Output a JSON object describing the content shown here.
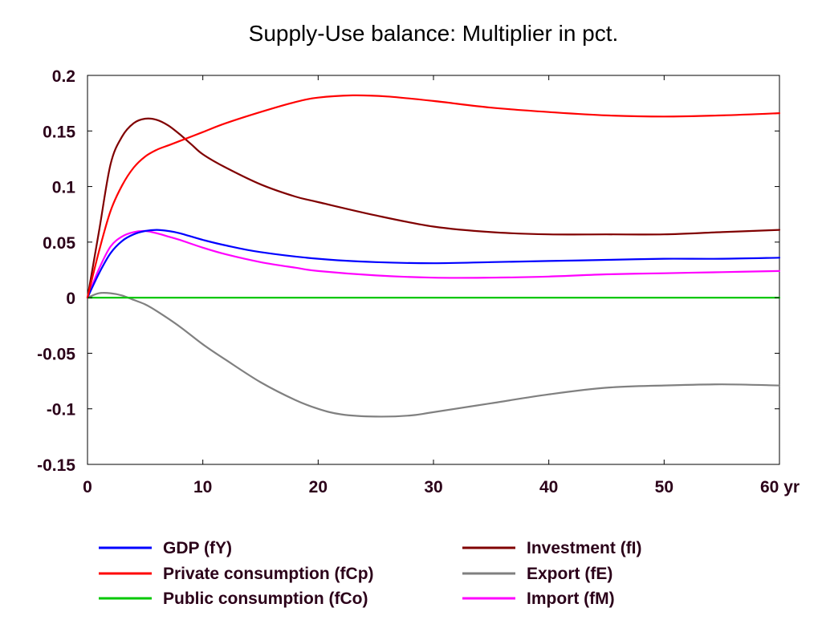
{
  "chart_data": {
    "type": "line",
    "title": "Supply-Use balance: Multiplier in pct.",
    "xlabel": "",
    "ylabel": "",
    "x_unit_label": "yr",
    "xlim": [
      0,
      60
    ],
    "ylim": [
      -0.15,
      0.2
    ],
    "x_ticks": [
      0,
      10,
      20,
      30,
      40,
      50,
      60
    ],
    "x_tick_labels": [
      "0",
      "10",
      "20",
      "30",
      "40",
      "50",
      "60"
    ],
    "y_ticks": [
      0.2,
      0.15,
      0.1,
      0.05,
      0,
      -0.05,
      -0.1,
      -0.15
    ],
    "y_tick_labels": [
      "0.2",
      "0.15",
      "0.1",
      "0.05",
      "0",
      "-0.05",
      "-0.1",
      "-0.15"
    ],
    "grid": false,
    "legend_position": "bottom",
    "series": [
      {
        "name": "GDP (fY)",
        "color": "#0000ff",
        "x": [
          0,
          1,
          2,
          3,
          4,
          5,
          6,
          7,
          8,
          10,
          12,
          15,
          20,
          25,
          30,
          35,
          40,
          45,
          50,
          55,
          60
        ],
        "values": [
          0,
          0.022,
          0.04,
          0.051,
          0.057,
          0.06,
          0.061,
          0.06,
          0.058,
          0.052,
          0.047,
          0.041,
          0.035,
          0.032,
          0.031,
          0.032,
          0.033,
          0.034,
          0.035,
          0.035,
          0.036
        ]
      },
      {
        "name": "Private consumption (fCp)",
        "color": "#ff0000",
        "x": [
          0,
          1,
          2,
          3,
          4,
          5,
          6,
          7,
          8,
          10,
          12,
          15,
          18,
          20,
          23,
          26,
          30,
          35,
          40,
          45,
          50,
          55,
          60
        ],
        "values": [
          0,
          0.042,
          0.078,
          0.101,
          0.117,
          0.127,
          0.133,
          0.137,
          0.141,
          0.149,
          0.157,
          0.167,
          0.176,
          0.18,
          0.182,
          0.181,
          0.177,
          0.171,
          0.167,
          0.164,
          0.163,
          0.164,
          0.166
        ]
      },
      {
        "name": "Public consumption (fCo)",
        "color": "#00c800",
        "x": [
          0,
          60
        ],
        "values": [
          0,
          0
        ]
      },
      {
        "name": "Investment (fI)",
        "color": "#800000",
        "x": [
          0,
          1,
          2,
          3,
          4,
          5,
          6,
          7,
          8,
          9,
          10,
          12,
          15,
          18,
          20,
          25,
          30,
          35,
          40,
          45,
          50,
          55,
          60
        ],
        "values": [
          0,
          0.06,
          0.12,
          0.145,
          0.157,
          0.161,
          0.16,
          0.155,
          0.147,
          0.138,
          0.129,
          0.117,
          0.102,
          0.091,
          0.086,
          0.074,
          0.064,
          0.059,
          0.057,
          0.057,
          0.057,
          0.059,
          0.061
        ]
      },
      {
        "name": "Export (fE)",
        "color": "#808080",
        "x": [
          0,
          1,
          2,
          3,
          4,
          5,
          6,
          8,
          10,
          12,
          15,
          18,
          20,
          22,
          25,
          28,
          30,
          35,
          40,
          45,
          50,
          55,
          60
        ],
        "values": [
          0,
          0.004,
          0.004,
          0.002,
          -0.002,
          -0.006,
          -0.012,
          -0.026,
          -0.042,
          -0.056,
          -0.076,
          -0.092,
          -0.1,
          -0.105,
          -0.107,
          -0.106,
          -0.103,
          -0.095,
          -0.087,
          -0.081,
          -0.079,
          -0.078,
          -0.079
        ]
      },
      {
        "name": "Import (fM)",
        "color": "#ff00ff",
        "x": [
          0,
          1,
          2,
          3,
          4,
          5,
          6,
          7,
          8,
          10,
          12,
          15,
          18,
          20,
          25,
          30,
          35,
          40,
          45,
          50,
          55,
          60
        ],
        "values": [
          0,
          0.026,
          0.046,
          0.055,
          0.059,
          0.06,
          0.058,
          0.055,
          0.052,
          0.045,
          0.039,
          0.032,
          0.027,
          0.024,
          0.02,
          0.018,
          0.018,
          0.019,
          0.021,
          0.022,
          0.023,
          0.024
        ]
      }
    ]
  }
}
